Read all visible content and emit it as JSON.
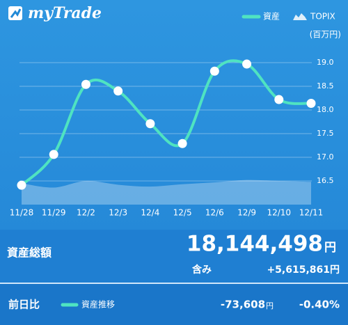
{
  "header": {
    "logo": "myTrade"
  },
  "chart_data": {
    "type": "line",
    "unit_label": "(百万円)",
    "categories": [
      "11/28",
      "11/29",
      "12/2",
      "12/3",
      "12/4",
      "12/5",
      "12/6",
      "12/9",
      "12/10",
      "12/11"
    ],
    "series": [
      {
        "name": "資産",
        "color": "#4fe3c1",
        "values": [
          16.41,
          17.06,
          18.54,
          18.4,
          17.71,
          17.29,
          18.82,
          18.97,
          18.22,
          18.14
        ]
      },
      {
        "name": "TOPIX",
        "color": "#ffffff",
        "values": [
          16.45,
          16.36,
          16.5,
          16.42,
          16.38,
          16.43,
          16.47,
          16.52,
          16.5,
          16.48
        ]
      }
    ],
    "ylim": [
      16.0,
      19.2
    ],
    "yticks": [
      {
        "value": 19,
        "label": "19.0"
      },
      18.5,
      {
        "value": 18,
        "label": "18.0"
      },
      17.5,
      {
        "value": 17,
        "label": "17.0"
      },
      16.5
    ],
    "grid": true
  },
  "summary": {
    "total_label": "資産総額",
    "total_value": "18,144,498",
    "total_unit": "円",
    "gain_label": "含み",
    "gain_value": "+5,615,861円"
  },
  "footer": {
    "label": "前日比",
    "legend": "資産推移",
    "change": "-73,608",
    "change_unit": "円",
    "change_pct": "-0.40%"
  }
}
